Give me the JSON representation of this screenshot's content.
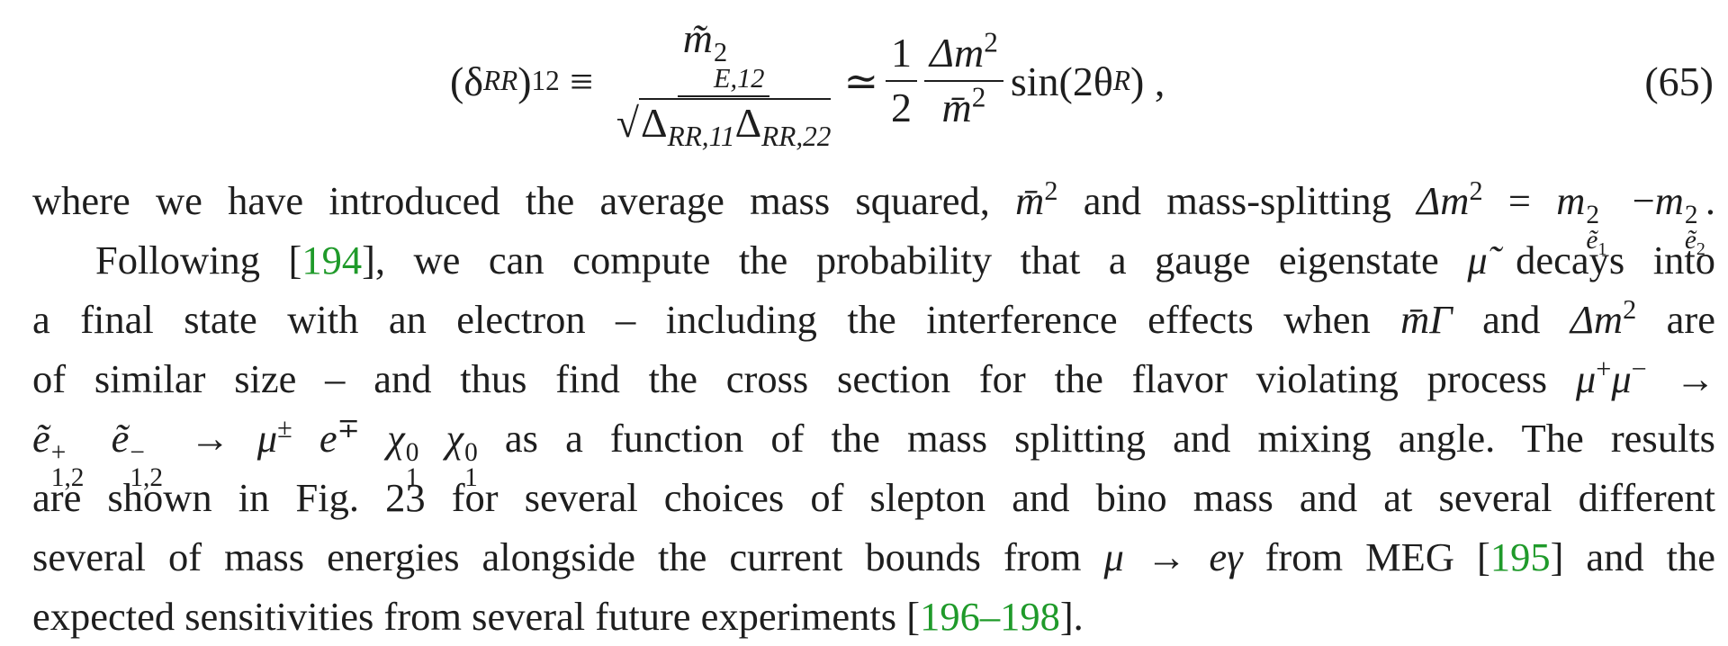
{
  "equation": {
    "lhs": {
      "open": "(δ",
      "sub": "RR",
      "close": ")",
      "sup": "12"
    },
    "equiv": "≡",
    "numerator": {
      "base": "m̃",
      "sup": "2",
      "sub": "E,12"
    },
    "denominator": {
      "root": "√",
      "first": "Δ",
      "first_sub": "RR,11",
      "second": "Δ",
      "second_sub": "RR,22"
    },
    "approx": "≃",
    "half": {
      "num": "1",
      "den": "2"
    },
    "ratio": {
      "num": "Δm",
      "num_sup": "2",
      "den": "m̄",
      "den_sup": "2"
    },
    "sin": "sin(2θ",
    "sin_sub": "R",
    "sin_close": ") ,",
    "number": "(65)"
  },
  "lines": [
    [
      "where we have introduced the average mass squared, ",
      "m̄",
      "2",
      " and mass-splitting ",
      "Δm",
      "2",
      " = ",
      "m",
      "2",
      "ẽ",
      "1",
      " −",
      "m",
      "2",
      "ẽ",
      "2",
      "."
    ],
    [
      "Following [",
      "194",
      "], we can compute the probability that a gauge eigenstate ",
      "μ̃",
      " decays into"
    ],
    [
      "a final state with an electron – including the interference effects when ",
      "m̄Γ",
      " and ",
      "Δm",
      "2",
      " are"
    ],
    [
      "of similar size – and thus find the cross section for the flavor violating process ",
      "μ",
      "+",
      "μ",
      "−",
      " →"
    ],
    [
      "ẽ",
      "+",
      "1,2",
      " ",
      "ẽ",
      "−",
      "1,2",
      " → ",
      "μ",
      "±",
      " e",
      "∓",
      " χ",
      "0",
      "1",
      " χ",
      "0",
      "1",
      " as a function of the mass splitting and mixing angle.  The results"
    ],
    [
      "are shown in Fig. 23 for several choices of slepton and bino mass and at several different"
    ],
    [
      "several of mass energies alongside the current bounds from ",
      "μ → eγ",
      " from MEG [",
      "195",
      "] and the"
    ],
    [
      "expected sensitivities from several future experiments [",
      "196–198",
      "]."
    ]
  ]
}
